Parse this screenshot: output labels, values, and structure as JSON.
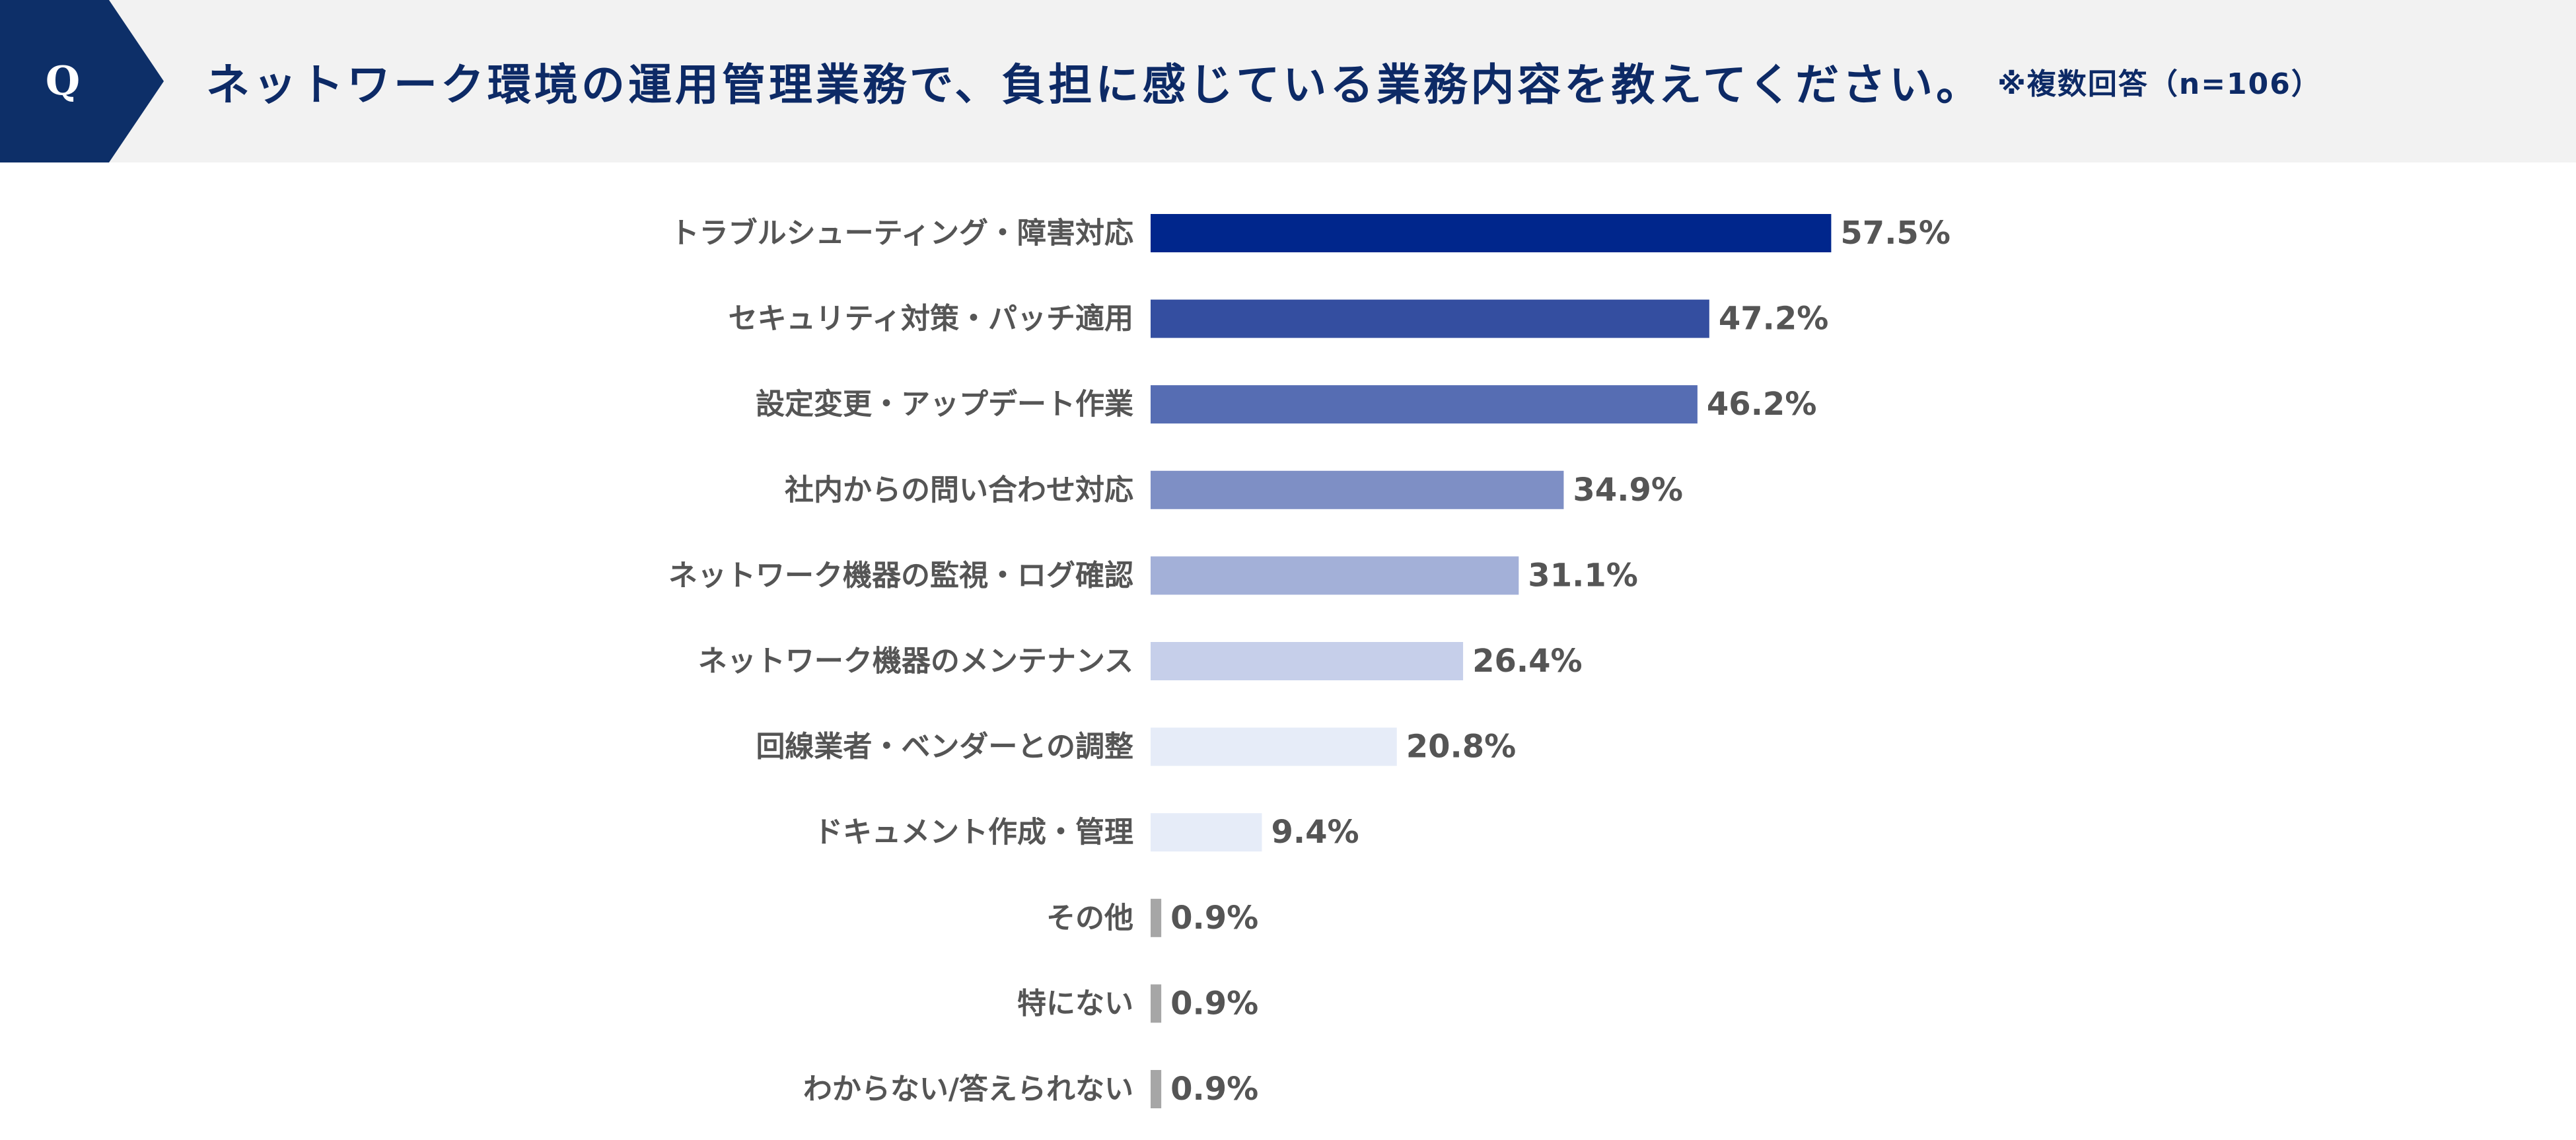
{
  "header": {
    "badge": "Q",
    "question": "ネットワーク環境の運用管理業務で、負担に感じている業務内容を教えてください。",
    "note": "※複数回答（n=106）",
    "badge_color": "#0d2f68",
    "background_color": "#f2f2f2"
  },
  "chart_data": {
    "type": "bar",
    "orientation": "horizontal",
    "unit": "%",
    "xlim": [
      0,
      100
    ],
    "grid": false,
    "categories": [
      "トラブルシューティング・障害対応",
      "セキュリティ対策・パッチ適用",
      "設定変更・アップデート作業",
      "社内からの問い合わせ対応",
      "ネットワーク機器の監視・ログ確認",
      "ネットワーク機器のメンテナンス",
      "回線業者・ベンダーとの調整",
      "ドキュメント作成・管理",
      "その他",
      "特にない",
      "わからない/答えられない"
    ],
    "values": [
      57.5,
      47.2,
      46.2,
      34.9,
      31.1,
      26.4,
      20.8,
      9.4,
      0.9,
      0.9,
      0.9
    ],
    "value_labels": [
      "57.5%",
      "47.2%",
      "46.2%",
      "34.9%",
      "31.1%",
      "26.4%",
      "20.8%",
      "9.4%",
      "0.9%",
      "0.9%",
      "0.9%"
    ],
    "bar_colors": [
      "#00268c",
      "#344ea0",
      "#566db3",
      "#7e8fc5",
      "#a3b0d8",
      "#c6cfea",
      "#e6ecf8",
      "#e6ecf8",
      "#a6a6a6",
      "#a6a6a6",
      "#a6a6a6"
    ],
    "label_color": "#555555"
  }
}
